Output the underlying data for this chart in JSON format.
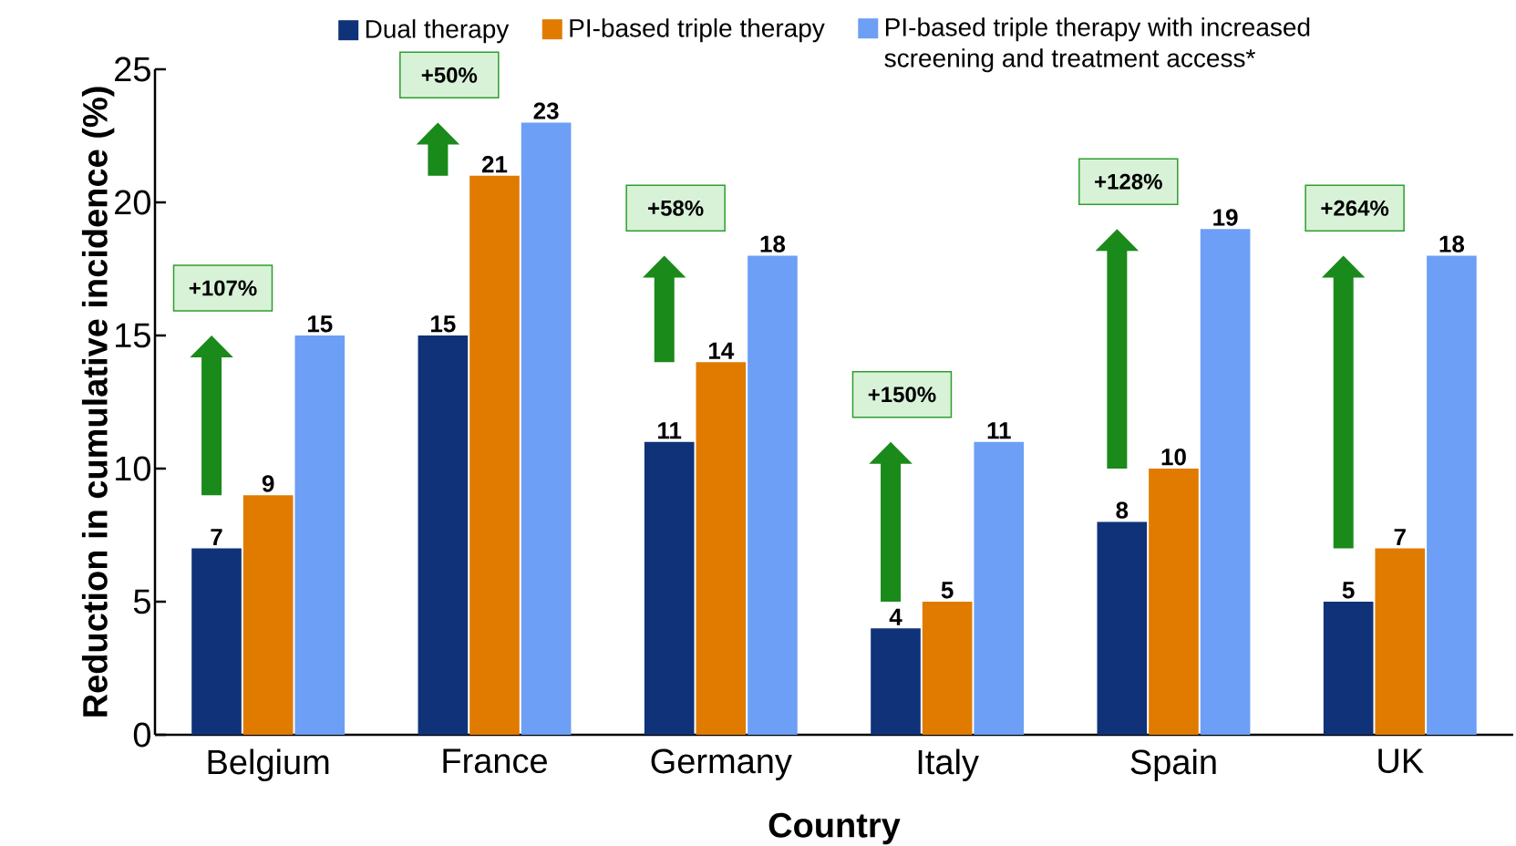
{
  "chart_data": {
    "type": "bar",
    "xlabel": "Country",
    "ylabel": "Reduction in cumulative incidence (%)",
    "categories": [
      "Belgium",
      "France",
      "Germany",
      "Italy",
      "Spain",
      "UK"
    ],
    "series": [
      {
        "name": "Dual therapy",
        "color": "#0f3279",
        "values": [
          7,
          15,
          11,
          4,
          8,
          5
        ]
      },
      {
        "name": "PI-based triple therapy",
        "color": "#e07b00",
        "values": [
          9,
          21,
          14,
          5,
          10,
          7
        ]
      },
      {
        "name": "PI-based triple therapy with increased screening and treatment access*",
        "color": "#6c9ff5",
        "values": [
          15,
          23,
          18,
          11,
          19,
          18
        ]
      }
    ],
    "ylim": [
      0,
      25
    ],
    "yticks": [
      0,
      5,
      10,
      15,
      20,
      25
    ],
    "grid": false,
    "legend": "top",
    "data_labels": true,
    "annotations": [
      "+107%",
      "+50%",
      "+58%",
      "+150%",
      "+128%",
      "+264%"
    ]
  }
}
